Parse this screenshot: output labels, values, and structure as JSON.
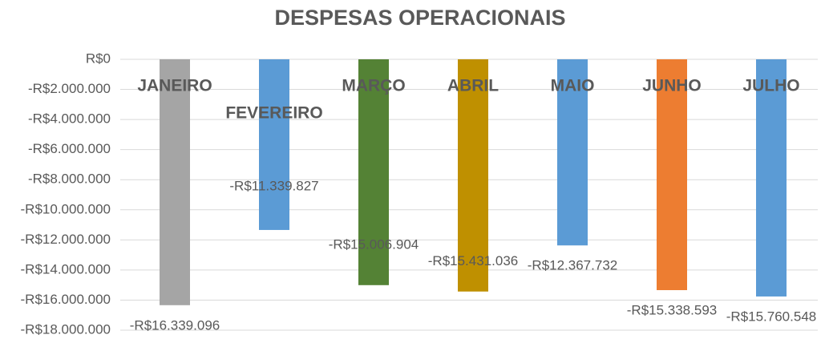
{
  "chart_data": {
    "type": "bar",
    "title": "DESPESAS OPERACIONAIS",
    "categories": [
      "JANEIRO",
      "FEVEREIRO",
      "MARÇO",
      "ABRIL",
      "MAIO",
      "JUNHO",
      "JULHO"
    ],
    "values": [
      -16339096,
      -11339827,
      -15006904,
      -15431036,
      -12367732,
      -15338593,
      -15760548
    ],
    "value_labels": [
      "-R$16.339.096",
      "-R$11.339.827",
      "-R$15.006.904",
      "-R$15.431.036",
      "-R$12.367.732",
      "-R$15.338.593",
      "-R$15.760.548"
    ],
    "colors": [
      "#a5a5a5",
      "#5b9bd5",
      "#548235",
      "#bf9000",
      "#5b9bd5",
      "#ed7d31",
      "#5b9bd5"
    ],
    "ylim": [
      -18000000,
      0
    ],
    "yticks": [
      {
        "value": 0,
        "label": "R$0"
      },
      {
        "value": -2000000,
        "label": "-R$2.000.000"
      },
      {
        "value": -4000000,
        "label": "-R$4.000.000"
      },
      {
        "value": -6000000,
        "label": "-R$6.000.000"
      },
      {
        "value": -8000000,
        "label": "-R$8.000.000"
      },
      {
        "value": -10000000,
        "label": "-R$10.000.000"
      },
      {
        "value": -12000000,
        "label": "-R$12.000.000"
      },
      {
        "value": -14000000,
        "label": "-R$14.000.000"
      },
      {
        "value": -16000000,
        "label": "-R$16.000.000"
      },
      {
        "value": -18000000,
        "label": "-R$18.000.000"
      }
    ],
    "grid": true
  }
}
